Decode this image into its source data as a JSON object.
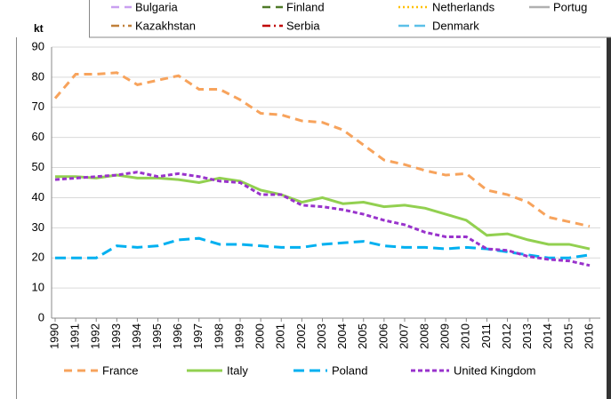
{
  "chart_data": {
    "type": "line",
    "y_label": "kt",
    "categories": [
      "1990",
      "1991",
      "1992",
      "1993",
      "1994",
      "1995",
      "1996",
      "1997",
      "1998",
      "1999",
      "2000",
      "2001",
      "2002",
      "2003",
      "2004",
      "2005",
      "2006",
      "2007",
      "2008",
      "2009",
      "2010",
      "2011",
      "2012",
      "2013",
      "2014",
      "2015",
      "2016"
    ],
    "series": [
      {
        "name": "France",
        "color": "#f7a35c",
        "dash": "dashed",
        "values": [
          73,
          81,
          81,
          81.5,
          77.5,
          79,
          80.5,
          76,
          76,
          72.5,
          68,
          67.5,
          65.5,
          65,
          62.5,
          57.5,
          52.5,
          51,
          49,
          47.5,
          48,
          42.5,
          41,
          38.5,
          33.5,
          32,
          30.5
        ]
      },
      {
        "name": "Italy",
        "color": "#92d050",
        "dash": "solid",
        "values": [
          47,
          47,
          46.5,
          47.5,
          46.5,
          46.5,
          46,
          45,
          46.5,
          45.5,
          42.5,
          41,
          38.5,
          40,
          38,
          38.5,
          37,
          37.5,
          36.5,
          34.5,
          32.5,
          27.5,
          28,
          26,
          24.5,
          24.5,
          23
        ]
      },
      {
        "name": "Poland",
        "color": "#00b0f0",
        "dash": "longdash",
        "values": [
          20,
          20,
          20,
          24,
          23.5,
          24,
          26,
          26.5,
          24.5,
          24.5,
          24,
          23.5,
          23.5,
          24.5,
          25,
          25.5,
          24,
          23.5,
          23.5,
          23,
          23.5,
          23,
          22,
          21,
          20,
          20,
          21
        ]
      },
      {
        "name": "United Kingdom",
        "color": "#9933cc",
        "dash": "shortdash",
        "values": [
          46,
          46.5,
          47,
          47.5,
          48.5,
          47,
          48,
          47,
          45.5,
          45,
          41,
          41,
          37.5,
          37,
          36,
          34.5,
          32.5,
          31,
          28.5,
          27,
          27,
          23,
          22.5,
          20.5,
          19.5,
          19,
          17.5
        ]
      }
    ],
    "ylim": [
      0,
      90
    ],
    "yticks": [
      0,
      10,
      20,
      30,
      40,
      50,
      60,
      70,
      80,
      90
    ],
    "grid": true,
    "overlay_legend": [
      {
        "name": "Bulgaria",
        "color": "#c9a0f0",
        "dash": "dashed"
      },
      {
        "name": "Finland",
        "color": "#4f7a28",
        "dash": "dashed"
      },
      {
        "name": "Netherlands",
        "color": "#ffc000",
        "dash": "dotted"
      },
      {
        "name": "Portug",
        "color": "#b0b0b0",
        "dash": "solid"
      },
      {
        "name": "Kazakhstan",
        "color": "#c0803a",
        "dash": "dashdot"
      },
      {
        "name": "Serbia",
        "color": "#c00000",
        "dash": "dashdot"
      },
      {
        "name": "Denmark",
        "color": "#5bc0e8",
        "dash": "longdash"
      }
    ]
  }
}
